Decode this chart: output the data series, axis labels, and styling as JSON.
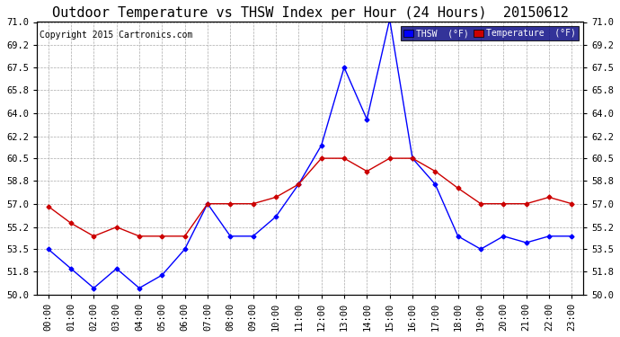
{
  "title": "Outdoor Temperature vs THSW Index per Hour (24 Hours)  20150612",
  "copyright": "Copyright 2015 Cartronics.com",
  "background_color": "#ffffff",
  "plot_background": "#ffffff",
  "grid_color": "#aaaaaa",
  "hours": [
    "00:00",
    "01:00",
    "02:00",
    "03:00",
    "04:00",
    "05:00",
    "06:00",
    "07:00",
    "08:00",
    "09:00",
    "10:00",
    "11:00",
    "12:00",
    "13:00",
    "14:00",
    "15:00",
    "16:00",
    "17:00",
    "18:00",
    "19:00",
    "20:00",
    "21:00",
    "22:00",
    "23:00"
  ],
  "thsw": [
    53.5,
    52.0,
    50.5,
    52.0,
    50.5,
    51.5,
    53.5,
    57.0,
    54.5,
    54.5,
    56.0,
    58.5,
    61.5,
    67.5,
    63.5,
    71.2,
    60.5,
    58.5,
    54.5,
    53.5,
    54.5,
    54.0,
    54.5,
    54.5
  ],
  "temperature": [
    56.8,
    55.5,
    54.5,
    55.2,
    54.5,
    54.5,
    54.5,
    57.0,
    57.0,
    57.0,
    57.5,
    58.5,
    60.5,
    60.5,
    59.5,
    60.5,
    60.5,
    59.5,
    58.2,
    57.0,
    57.0,
    57.0,
    57.5,
    57.0
  ],
  "thsw_color": "#0000ff",
  "temperature_color": "#cc0000",
  "marker": "D",
  "marker_size": 2.5,
  "line_width": 1.0,
  "ylim": [
    50.0,
    71.0
  ],
  "yticks": [
    50.0,
    51.8,
    53.5,
    55.2,
    57.0,
    58.8,
    60.5,
    62.2,
    64.0,
    65.8,
    67.5,
    69.2,
    71.0
  ],
  "title_fontsize": 11,
  "tick_fontsize": 7.5,
  "copyright_fontsize": 7,
  "legend_thsw_label": "THSW  (°F)",
  "legend_temp_label": "Temperature  (°F)"
}
